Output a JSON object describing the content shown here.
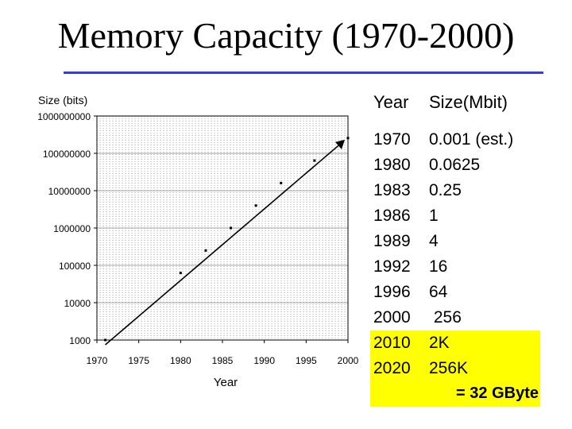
{
  "title": "Memory Capacity (1970-2000)",
  "chart_data": {
    "type": "line",
    "ylabel": "Size (bits)",
    "xlabel": "Year",
    "y_scale": "log",
    "ylim": [
      1000,
      1000000000
    ],
    "xlim": [
      1970,
      2000
    ],
    "y_ticks": [
      "1000000000",
      "100000000",
      "10000000",
      "1000000",
      "100000",
      "10000",
      "1000"
    ],
    "x_ticks": [
      "1970",
      "1975",
      "1980",
      "1985",
      "1990",
      "1995",
      "2000"
    ],
    "grid": true,
    "series": [
      {
        "name": "",
        "x": [
          1971,
          1980,
          1983,
          1986,
          1989,
          1992,
          1996,
          2000
        ],
        "y": [
          1000,
          62500,
          250000,
          1000000,
          4000000,
          16000000,
          64000000,
          256000000
        ]
      }
    ]
  },
  "table": {
    "header_year": "Year",
    "header_size": "Size(Mbit)",
    "rows": [
      {
        "year": "1970",
        "size": "0.001 (est.)"
      },
      {
        "year": "1980",
        "size": "0.0625"
      },
      {
        "year": "1983",
        "size": "0.25"
      },
      {
        "year": "1986",
        "size": "1"
      },
      {
        "year": "1989",
        "size": "4"
      },
      {
        "year": "1992",
        "size": "16"
      },
      {
        "year": "1996",
        "size": "64"
      },
      {
        "year": "2000",
        "size": " 256"
      },
      {
        "year": "2010",
        "size": "2K"
      },
      {
        "year": "2020",
        "size": "256K"
      }
    ],
    "highlight_color": "#ffff00",
    "note": "= 32 GByte"
  }
}
